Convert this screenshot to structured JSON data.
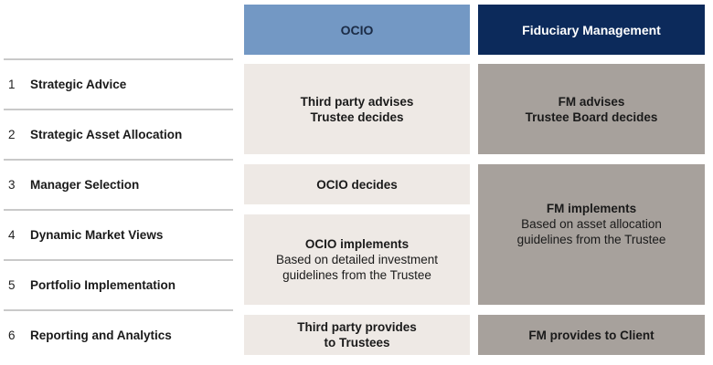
{
  "headers": {
    "ocio": "OCIO",
    "fm": "Fiduciary Management"
  },
  "rows": [
    {
      "num": "1",
      "label": "Strategic Advice"
    },
    {
      "num": "2",
      "label": "Strategic Asset Allocation"
    },
    {
      "num": "3",
      "label": "Manager Selection"
    },
    {
      "num": "4",
      "label": "Dynamic Market Views"
    },
    {
      "num": "5",
      "label": "Portfolio Implementation"
    },
    {
      "num": "6",
      "label": "Reporting and Analytics"
    }
  ],
  "ocio_cells": [
    {
      "lines": [
        "Third party advises",
        "Trustee decides"
      ]
    },
    {
      "lines": [
        "OCIO decides"
      ]
    },
    {
      "title": "OCIO implements",
      "lines": [
        "Based on detailed investment",
        "guidelines from the Trustee"
      ]
    },
    {
      "lines": [
        "Third party provides",
        "to Trustees"
      ]
    }
  ],
  "fm_cells": [
    {
      "lines": [
        "FM advises",
        "Trustee Board decides"
      ]
    },
    {
      "title": "FM implements",
      "lines": [
        "Based on asset allocation",
        "guidelines from the Trustee"
      ]
    },
    {
      "lines": [
        "FM provides to Client"
      ]
    }
  ],
  "colors": {
    "ocio_header": "#7398c4",
    "fm_header": "#0c2a5b",
    "ocio_cell": "#eee9e5",
    "fm_cell": "#a7a19c"
  }
}
